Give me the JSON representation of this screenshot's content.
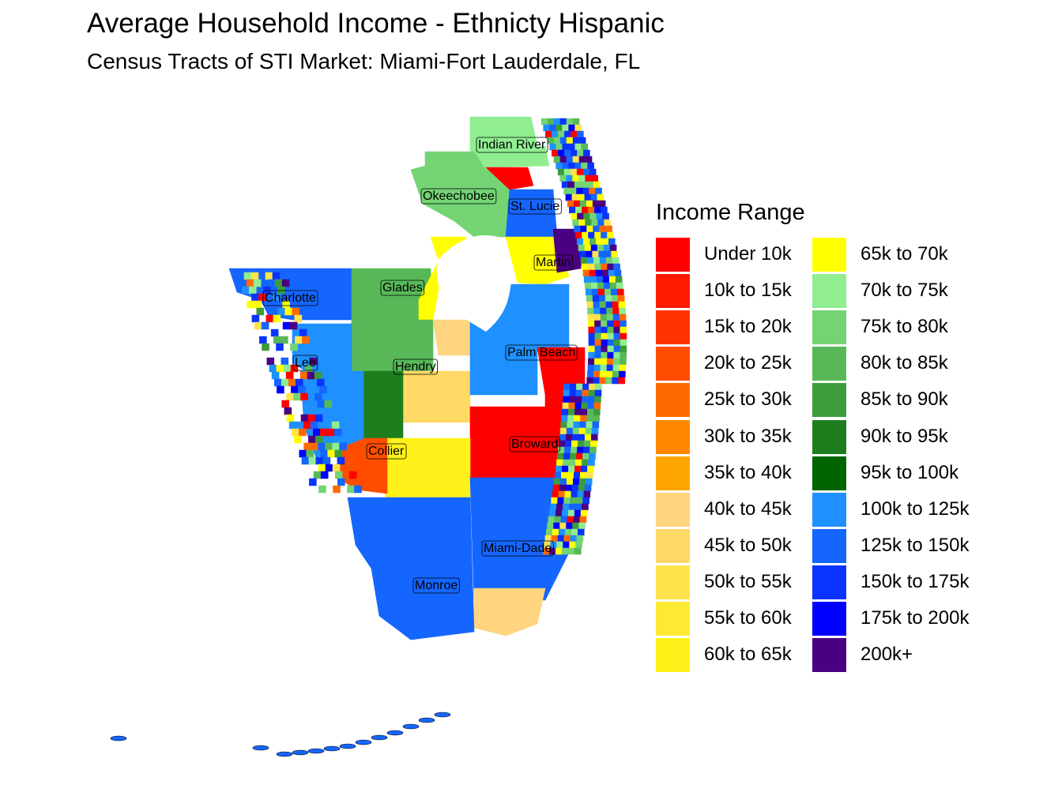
{
  "title": "Average Household Income - Ethnicty Hispanic",
  "subtitle": "Census Tracts of STI Market: Miami-Fort Lauderdale, FL",
  "legend": {
    "title": "Income Range",
    "items": [
      {
        "label": "Under 10k",
        "color": "#FF0000"
      },
      {
        "label": "10k to 15k",
        "color": "#FF1A00"
      },
      {
        "label": "15k to 20k",
        "color": "#FF3300"
      },
      {
        "label": "20k to 25k",
        "color": "#FF4D00"
      },
      {
        "label": "25k to 30k",
        "color": "#FF6A00"
      },
      {
        "label": "30k to 35k",
        "color": "#FF8800"
      },
      {
        "label": "35k to 40k",
        "color": "#FFA500"
      },
      {
        "label": "40k to 45k",
        "color": "#FFD580"
      },
      {
        "label": "45k to 50k",
        "color": "#FFD966"
      },
      {
        "label": "50k to 55k",
        "color": "#FFE34D"
      },
      {
        "label": "55k to 60k",
        "color": "#FFEA33"
      },
      {
        "label": "60k to 65k",
        "color": "#FFF21A"
      },
      {
        "label": "65k to 70k",
        "color": "#FFFF00"
      },
      {
        "label": "70k to 75k",
        "color": "#90EE90"
      },
      {
        "label": "75k to 80k",
        "color": "#74D474"
      },
      {
        "label": "80k to 85k",
        "color": "#58B858"
      },
      {
        "label": "85k to 90k",
        "color": "#3C9C3C"
      },
      {
        "label": "90k to 95k",
        "color": "#1E7E1E"
      },
      {
        "label": "95k to 100k",
        "color": "#006400"
      },
      {
        "label": "100k to 125k",
        "color": "#1E90FF"
      },
      {
        "label": "125k to 150k",
        "color": "#1565FF"
      },
      {
        "label": "150k to 175k",
        "color": "#0A33FF"
      },
      {
        "label": "175k to 200k",
        "color": "#0000FF"
      },
      {
        "label": "200k+",
        "color": "#4B0082"
      }
    ]
  },
  "counties": [
    "Indian River",
    "Okeechobee",
    "St. Lucie",
    "Martin",
    "Glades",
    "Charlotte",
    "Palm Beach",
    "Lee",
    "Hendry",
    "Collier",
    "Broward",
    "Miami-Dade",
    "Monroe"
  ]
}
